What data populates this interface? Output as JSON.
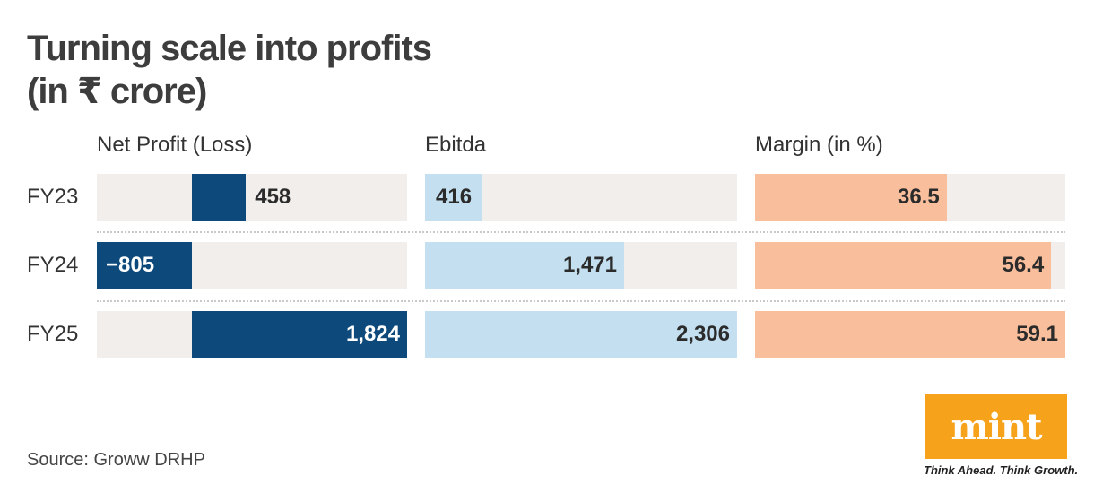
{
  "title_line1": "Turning scale into profits",
  "title_line2": "(in ₹ crore)",
  "source": "Source: Groww DRHP",
  "logo": {
    "text": "mint",
    "tagline": "Think Ahead. Think Growth.",
    "color": "#f7a21b"
  },
  "colors": {
    "net_profit": "#0d4a7b",
    "ebitda": "#c4e0f0",
    "margin": "#f9be9c",
    "track": "#f1eeec"
  },
  "chart_data": [
    {
      "type": "bar",
      "title": "Net Profit (Loss)",
      "categories": [
        "FY23",
        "FY24",
        "FY25"
      ],
      "values": [
        458,
        -805,
        1824
      ],
      "labels": [
        "458",
        "−805",
        "1,824"
      ],
      "xlim": [
        -805,
        1824
      ]
    },
    {
      "type": "bar",
      "title": "Ebitda",
      "categories": [
        "FY23",
        "FY24",
        "FY25"
      ],
      "values": [
        416,
        1471,
        2306
      ],
      "labels": [
        "416",
        "1,471",
        "2,306"
      ],
      "xlim": [
        0,
        2306
      ]
    },
    {
      "type": "bar",
      "title": "Margin (in %)",
      "categories": [
        "FY23",
        "FY24",
        "FY25"
      ],
      "values": [
        36.5,
        56.4,
        59.1
      ],
      "labels": [
        "36.5",
        "56.4",
        "59.1"
      ],
      "xlim": [
        0,
        59.1
      ]
    }
  ]
}
